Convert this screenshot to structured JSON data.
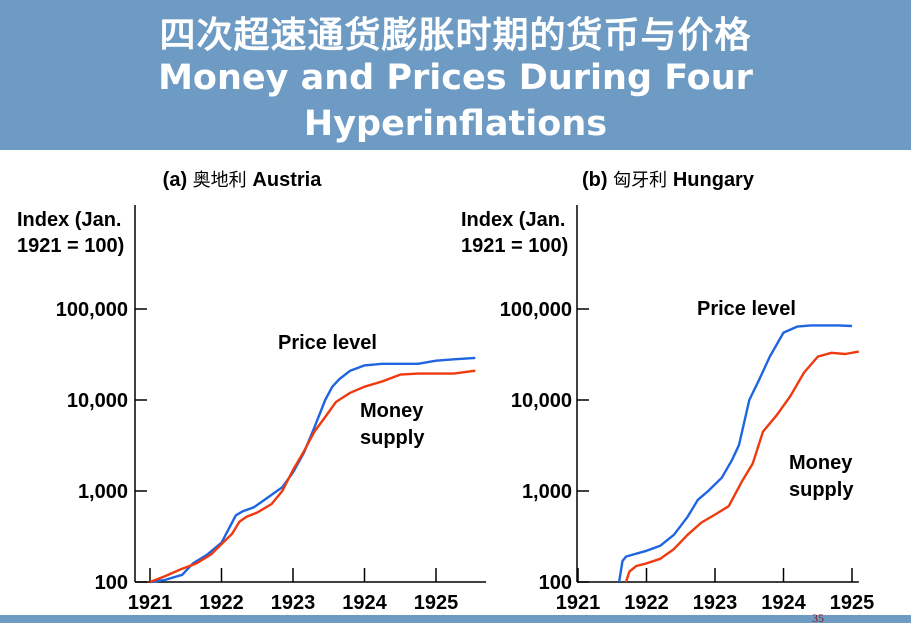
{
  "title": {
    "chinese": "四次超速通货膨胀时期的货币与价格",
    "english_line1": "Money and Prices During Four",
    "english_line2": "Hyperinflations"
  },
  "colors": {
    "header_bg": "#6e9bc4",
    "price_level": "#1f64e0",
    "money_supply": "#ee3a0e"
  },
  "page_number": "35",
  "chart_data": [
    {
      "type": "line",
      "panel_label": "(a)",
      "panel_name_cn": "奥地利",
      "panel_name_en": "Austria",
      "ylabel_line1": "Index (Jan.",
      "ylabel_line2": "1921 = 100)",
      "y_scale": "log",
      "ylim": [
        100,
        1000000
      ],
      "y_ticks": [
        100,
        1000,
        10000,
        100000
      ],
      "y_tick_labels": [
        "100",
        "1,000",
        "10,000",
        "100,000"
      ],
      "xlim": [
        1921,
        1925.7
      ],
      "x_ticks": [
        1921,
        1922,
        1923,
        1924,
        1925
      ],
      "x_tick_labels": [
        "1921",
        "1922",
        "1923",
        "1924",
        "1925"
      ],
      "series": [
        {
          "name": "Price level",
          "color": "#1f64e0",
          "x": [
            1921.0,
            1921.2,
            1921.45,
            1921.6,
            1921.8,
            1922.0,
            1922.1,
            1922.2,
            1922.3,
            1922.45,
            1922.65,
            1922.85,
            1923.0,
            1923.15,
            1923.3,
            1923.45,
            1923.55,
            1923.65,
            1923.8,
            1924.0,
            1924.25,
            1924.5,
            1924.75,
            1925.0,
            1925.25,
            1925.55
          ],
          "values": [
            100,
            105,
            120,
            160,
            200,
            270,
            380,
            540,
            600,
            660,
            850,
            1100,
            1600,
            2600,
            5000,
            10000,
            14000,
            17000,
            21000,
            24000,
            25000,
            25000,
            25000,
            27000,
            28000,
            29000
          ]
        },
        {
          "name": "Money supply",
          "color": "#ee3a0e",
          "x": [
            1921.0,
            1921.2,
            1921.45,
            1921.65,
            1921.85,
            1922.0,
            1922.15,
            1922.25,
            1922.35,
            1922.5,
            1922.7,
            1922.85,
            1923.0,
            1923.15,
            1923.3,
            1923.45,
            1923.6,
            1923.8,
            1924.0,
            1924.25,
            1924.5,
            1924.75,
            1925.0,
            1925.25,
            1925.55
          ],
          "values": [
            100,
            115,
            140,
            160,
            200,
            260,
            340,
            460,
            520,
            580,
            720,
            1000,
            1700,
            2700,
            4500,
            6500,
            9500,
            12000,
            14000,
            16000,
            19000,
            19500,
            19500,
            19500,
            21000
          ]
        }
      ]
    },
    {
      "type": "line",
      "panel_label": "(b)",
      "panel_name_cn": "匈牙利",
      "panel_name_en": "Hungary",
      "ylabel_line1": "Index (Jan.",
      "ylabel_line2": "1921 = 100)",
      "y_scale": "log",
      "ylim": [
        100,
        1000000
      ],
      "y_ticks": [
        100,
        1000,
        10000,
        100000
      ],
      "y_tick_labels": [
        "100",
        "1,000",
        "10,000",
        "100,000"
      ],
      "xlim": [
        1921,
        1925.1
      ],
      "x_ticks": [
        1921,
        1922,
        1923,
        1924,
        1925
      ],
      "x_tick_labels": [
        "1921",
        "1922",
        "1923",
        "1924",
        "1925"
      ],
      "series": [
        {
          "name": "Price level",
          "color": "#1f64e0",
          "x": [
            1921.6,
            1921.65,
            1921.7,
            1921.8,
            1922.0,
            1922.2,
            1922.4,
            1922.6,
            1922.75,
            1922.9,
            1923.1,
            1923.25,
            1923.35,
            1923.5,
            1923.65,
            1923.8,
            1924.0,
            1924.2,
            1924.4,
            1924.6,
            1924.8,
            1925.0
          ],
          "values": [
            100,
            170,
            190,
            200,
            220,
            250,
            330,
            520,
            800,
            1000,
            1400,
            2200,
            3200,
            10000,
            17000,
            30000,
            55000,
            64000,
            66000,
            66000,
            66000,
            65000
          ]
        },
        {
          "name": "Money supply",
          "color": "#ee3a0e",
          "x": [
            1921.7,
            1921.75,
            1921.85,
            1922.0,
            1922.2,
            1922.4,
            1922.6,
            1922.8,
            1923.0,
            1923.2,
            1923.4,
            1923.55,
            1923.7,
            1923.9,
            1924.1,
            1924.3,
            1924.5,
            1924.7,
            1924.9,
            1925.1
          ],
          "values": [
            100,
            130,
            150,
            160,
            180,
            230,
            330,
            450,
            550,
            680,
            1300,
            2000,
            4500,
            6800,
            11000,
            20000,
            30000,
            33000,
            32000,
            34000
          ]
        }
      ]
    }
  ]
}
